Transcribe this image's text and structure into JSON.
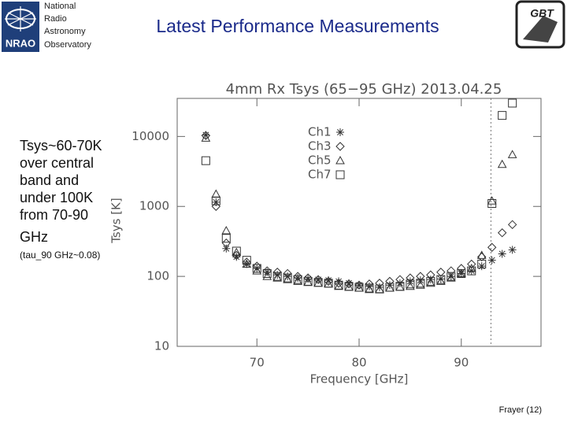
{
  "slide": {
    "title": "Latest Performance Measurements",
    "logo_lines": [
      "National",
      "Radio",
      "Astronomy",
      "Observatory"
    ],
    "logo_abbr": "NRAO",
    "gbt_logo": "GBT",
    "notes": [
      "Tsys~60-70K",
      "over central",
      "band and",
      "under 100K",
      "from 70-90",
      "GHz"
    ],
    "footnote": "(tau_90 GHz~0.08)",
    "footer": "Frayer (12)"
  },
  "chart_data": {
    "type": "scatter",
    "title": "4mm Rx Tsys (65−95 GHz) 2013.04.25",
    "x_label": "Frequency [GHz]",
    "y_label": "Tsys [K]",
    "x": [
      65,
      66,
      67,
      68,
      69,
      70,
      71,
      72,
      73,
      74,
      75,
      76,
      77,
      78,
      79,
      80,
      81,
      82,
      83,
      84,
      85,
      86,
      87,
      88,
      89,
      90,
      91,
      92,
      93,
      94,
      95
    ],
    "series": [
      {
        "name": "Ch1",
        "marker": "star",
        "color": "#333333",
        "values": [
          10500,
          1150,
          250,
          190,
          150,
          130,
          115,
          105,
          100,
          95,
          92,
          90,
          88,
          85,
          80,
          75,
          72,
          70,
          75,
          80,
          85,
          88,
          90,
          92,
          100,
          110,
          120,
          140,
          170,
          210,
          240
        ]
      },
      {
        "name": "Ch3",
        "marker": "diamond",
        "color": "#333333",
        "values": [
          10300,
          1000,
          300,
          200,
          160,
          140,
          120,
          115,
          110,
          100,
          95,
          90,
          85,
          80,
          78,
          75,
          78,
          80,
          85,
          90,
          95,
          100,
          105,
          115,
          120,
          130,
          150,
          190,
          260,
          420,
          550
        ]
      },
      {
        "name": "Ch5",
        "marker": "triangle",
        "color": "#333333",
        "values": [
          9500,
          1500,
          450,
          220,
          150,
          120,
          100,
          95,
          90,
          85,
          82,
          80,
          78,
          72,
          70,
          68,
          65,
          65,
          68,
          70,
          72,
          75,
          80,
          85,
          95,
          110,
          130,
          200,
          1200,
          4000,
          5500
        ]
      },
      {
        "name": "Ch7",
        "marker": "square",
        "color": "#333333",
        "values": [
          4500,
          1200,
          350,
          230,
          170,
          130,
          110,
          100,
          95,
          90,
          85,
          82,
          80,
          75,
          72,
          70,
          68,
          66,
          70,
          72,
          78,
          80,
          85,
          90,
          100,
          110,
          120,
          150,
          1100,
          20000,
          30000
        ]
      }
    ],
    "xlim": [
      62.2,
      97.8
    ],
    "ylim": [
      10,
      35000
    ],
    "xticks": [
      70,
      80,
      90
    ],
    "yticks": [
      10,
      100,
      1000,
      10000
    ],
    "log_y": true,
    "vline": 92.9
  }
}
